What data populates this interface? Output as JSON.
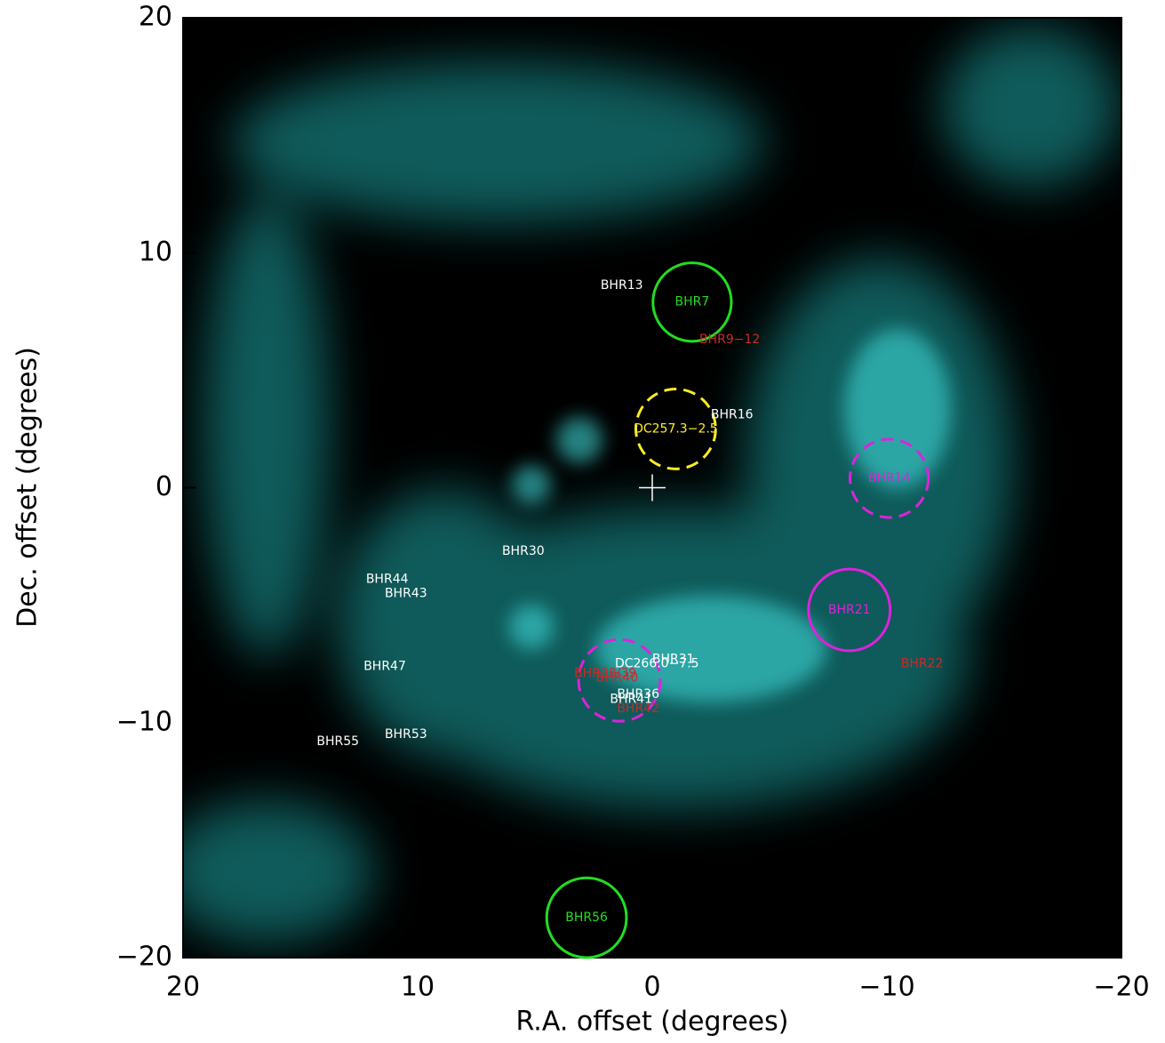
{
  "chart_data": {
    "type": "scatter",
    "x_label": "R.A. offset (degrees)",
    "y_label": "Dec. offset (degrees)",
    "xlim": [
      20,
      -20
    ],
    "ylim": [
      -20,
      20
    ],
    "xticks": [
      20,
      10,
      0,
      {
        "value": -10,
        "label": "−10"
      },
      {
        "value": -20,
        "label": "−20"
      }
    ],
    "yticks": [
      {
        "value": -20,
        "label": "−20"
      },
      {
        "value": -10,
        "label": "−10"
      },
      0,
      10,
      20
    ],
    "center_marker": {
      "x": 0,
      "y": 0,
      "color": "#ffffff"
    },
    "circles": [
      {
        "label": "BHR7",
        "x": -1.7,
        "y": 7.9,
        "r": 1.67,
        "color": "#22dd22",
        "dashed": false
      },
      {
        "label": "DC257.3−2.5",
        "x": -1.0,
        "y": 2.5,
        "r": 1.7,
        "color": "#ffee22",
        "dashed": true
      },
      {
        "label": "BHR14",
        "x": -10.1,
        "y": 0.4,
        "r": 1.67,
        "color": "#dd22dd",
        "dashed": true
      },
      {
        "label": "BHR21",
        "x": -8.4,
        "y": -5.2,
        "r": 1.74,
        "color": "#dd22dd",
        "dashed": false
      },
      {
        "label": "DC266.0−7.5",
        "x": 1.4,
        "y": -8.2,
        "r": 1.74,
        "color": "#dd22dd",
        "dashed": true
      },
      {
        "label": "BHR56",
        "x": 2.8,
        "y": -18.3,
        "r": 1.7,
        "color": "#22dd22",
        "dashed": false
      }
    ],
    "label_positions": [
      {
        "x": -1.7,
        "y": 7.9,
        "color": "#22dd22"
      },
      {
        "x": -1.0,
        "y": 2.5,
        "color": "#ffee22"
      },
      {
        "x": -10.1,
        "y": 0.4,
        "color": "#dd22dd"
      },
      {
        "x": -8.4,
        "y": -5.2,
        "color": "#dd22dd"
      },
      {
        "x": -0.2,
        "y": -7.5,
        "color": "#ffffff"
      },
      {
        "x": 2.8,
        "y": -18.3,
        "color": "#22dd22"
      }
    ],
    "annotations": [
      {
        "text": "BHR13",
        "x": 1.3,
        "y": 8.6,
        "color": "#ffffff"
      },
      {
        "text": "BHR9−12",
        "x": -3.3,
        "y": 6.3,
        "color": "#c82a2a"
      },
      {
        "text": "BHR16",
        "x": -3.4,
        "y": 3.1,
        "color": "#ffffff"
      },
      {
        "text": "BHR30",
        "x": 5.5,
        "y": -2.7,
        "color": "#ffffff"
      },
      {
        "text": "BHR44",
        "x": 11.3,
        "y": -3.9,
        "color": "#ffffff"
      },
      {
        "text": "BHR43",
        "x": 10.5,
        "y": -4.5,
        "color": "#ffffff"
      },
      {
        "text": "BHR22",
        "x": -11.5,
        "y": -7.5,
        "color": "#c82a2a"
      },
      {
        "text": "BHR47",
        "x": 11.4,
        "y": -7.6,
        "color": "#ffffff"
      },
      {
        "text": "BHR31",
        "x": -0.9,
        "y": -7.3,
        "color": "#ffffff"
      },
      {
        "text": "BHR38/39",
        "x": 2.0,
        "y": -7.9,
        "color": "#c82a2a"
      },
      {
        "text": "BHR40",
        "x": 1.5,
        "y": -8.1,
        "color": "#c82a2a"
      },
      {
        "text": "BHR36",
        "x": 0.6,
        "y": -8.8,
        "color": "#ffffff"
      },
      {
        "text": "BHR41",
        "x": 0.9,
        "y": -9.0,
        "color": "#ffffff"
      },
      {
        "text": "BHR42",
        "x": 0.6,
        "y": -9.4,
        "color": "#c82a2a"
      },
      {
        "text": "BHR55",
        "x": 13.4,
        "y": -10.8,
        "color": "#ffffff"
      },
      {
        "text": "BHR53",
        "x": 10.5,
        "y": -10.5,
        "color": "#ffffff"
      }
    ]
  }
}
